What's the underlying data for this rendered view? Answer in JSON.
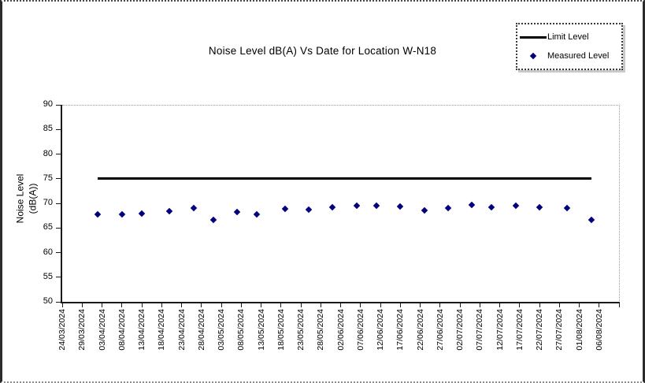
{
  "chart_data": {
    "type": "scatter",
    "title": "Noise Level dB(A) Vs Date for Location W-N18",
    "ylabel_line1": "Noise Level",
    "ylabel_line2": "(dB(A))",
    "xlabel": "",
    "ylim": [
      50,
      90
    ],
    "yticks": [
      50,
      55,
      60,
      65,
      70,
      75,
      80,
      85,
      90
    ],
    "grid": "off",
    "plot_border_color": "#999999",
    "axis_color": "#1a1a1a",
    "xtick_labels": [
      "24/03/2024",
      "29/03/2024",
      "03/04/2024",
      "08/04/2024",
      "13/04/2024",
      "18/04/2024",
      "23/04/2024",
      "28/04/2024",
      "03/05/2024",
      "08/05/2024",
      "13/05/2024",
      "18/05/2024",
      "23/05/2024",
      "28/05/2024",
      "02/06/2024",
      "07/06/2024",
      "12/06/2024",
      "17/06/2024",
      "22/06/2024",
      "27/06/2024",
      "02/07/2024",
      "07/07/2024",
      "12/07/2024",
      "17/07/2024",
      "22/07/2024",
      "27/07/2024",
      "01/08/2024",
      "06/08/2024"
    ],
    "legend": {
      "position": "top-right",
      "entries": [
        {
          "label": "Limit Level",
          "swatch": "line",
          "color": "#000000"
        },
        {
          "label": "Measured Level",
          "swatch": "diamond",
          "color": "#000080"
        }
      ]
    },
    "series": [
      {
        "name": "Limit Level",
        "type": "line",
        "color": "#000000",
        "points": [
          {
            "date": "02/04/2024",
            "value": 75
          },
          {
            "date": "04/08/2024",
            "value": 75
          }
        ]
      },
      {
        "name": "Measured Level",
        "type": "scatter",
        "color": "#000080",
        "points": [
          {
            "date": "02/04/2024",
            "value": 67.8
          },
          {
            "date": "08/04/2024",
            "value": 67.7
          },
          {
            "date": "13/04/2024",
            "value": 67.9
          },
          {
            "date": "20/04/2024",
            "value": 68.4
          },
          {
            "date": "26/04/2024",
            "value": 69.0
          },
          {
            "date": "01/05/2024",
            "value": 66.6
          },
          {
            "date": "07/05/2024",
            "value": 68.2
          },
          {
            "date": "12/05/2024",
            "value": 67.8
          },
          {
            "date": "19/05/2024",
            "value": 68.9
          },
          {
            "date": "25/05/2024",
            "value": 68.8
          },
          {
            "date": "31/05/2024",
            "value": 69.2
          },
          {
            "date": "06/06/2024",
            "value": 69.5
          },
          {
            "date": "11/06/2024",
            "value": 69.6
          },
          {
            "date": "17/06/2024",
            "value": 69.4
          },
          {
            "date": "23/06/2024",
            "value": 68.5
          },
          {
            "date": "29/06/2024",
            "value": 69.1
          },
          {
            "date": "05/07/2024",
            "value": 69.7
          },
          {
            "date": "10/07/2024",
            "value": 69.2
          },
          {
            "date": "16/07/2024",
            "value": 69.6
          },
          {
            "date": "22/07/2024",
            "value": 69.2
          },
          {
            "date": "29/07/2024",
            "value": 69.1
          },
          {
            "date": "04/08/2024",
            "value": 66.7
          }
        ]
      }
    ]
  }
}
